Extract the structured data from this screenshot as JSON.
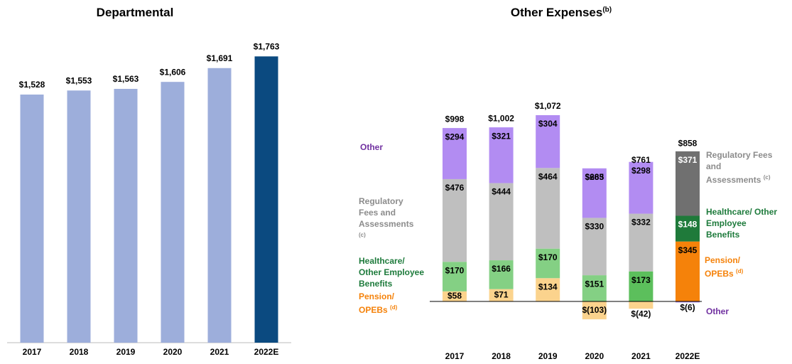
{
  "chart_data": [
    {
      "type": "bar",
      "title": "Departmental",
      "categories": [
        "2017",
        "2018",
        "2019",
        "2020",
        "2021",
        "2022E"
      ],
      "values": [
        1528,
        1553,
        1563,
        1606,
        1691,
        1763
      ],
      "value_labels": [
        "$1,528",
        "$1,553",
        "$1,563",
        "$1,606",
        "$1,691",
        "$1,763"
      ],
      "colors": [
        "#9daedb",
        "#9daedb",
        "#9daedb",
        "#9daedb",
        "#9daedb",
        "#0b4a80"
      ]
    },
    {
      "type": "stacked_bar",
      "title": "Other Expenses",
      "title_note": "(b)",
      "categories": [
        "2017",
        "2018",
        "2019",
        "2020",
        "2021",
        "2022E"
      ],
      "totals": [
        998,
        1002,
        1072,
        663,
        761,
        858
      ],
      "total_labels": [
        "$998",
        "$1,002",
        "$1,072",
        "$663",
        "$761",
        "$858"
      ],
      "series": [
        {
          "name": "Pension/ OPEBs",
          "note": "(d)",
          "legend_color": "#f5820a",
          "colors": [
            "#fbd38d",
            "#fbd38d",
            "#fbd38d",
            "#fbd38d",
            "#fbd38d",
            "#f5820a"
          ],
          "values": [
            58,
            71,
            134,
            -103,
            -42,
            345
          ],
          "value_labels": [
            "$58",
            "$71",
            "$134",
            "$(103)",
            "$(42)",
            "$345"
          ]
        },
        {
          "name": "Healthcare/ Other Employee Benefits",
          "legend_color": "#1e7b3c",
          "colors": [
            "#84d084",
            "#84d084",
            "#84d084",
            "#84d084",
            "#5cbf5c",
            "#1f7a3a"
          ],
          "values": [
            170,
            166,
            170,
            151,
            173,
            148
          ],
          "value_labels": [
            "$170",
            "$166",
            "$170",
            "$151",
            "$173",
            "$148"
          ]
        },
        {
          "name": "Regulatory Fees and Assessments",
          "note": "(c)",
          "legend_color": "#8c8c8c",
          "colors": [
            "#bfbfbf",
            "#bfbfbf",
            "#bfbfbf",
            "#bfbfbf",
            "#bfbfbf",
            "#707070"
          ],
          "values": [
            476,
            444,
            464,
            330,
            332,
            371
          ],
          "value_labels": [
            "$476",
            "$444",
            "$464",
            "$330",
            "$332",
            "$371"
          ]
        },
        {
          "name": "Other",
          "legend_color": "#7030a0",
          "colors": [
            "#b28cf2",
            "#b28cf2",
            "#b28cf2",
            "#b28cf2",
            "#b28cf2",
            "#b28cf2"
          ],
          "values": [
            294,
            321,
            304,
            285,
            298,
            -6
          ],
          "value_labels": [
            "$294",
            "$321",
            "$304",
            "$285",
            "$298",
            "$(6)"
          ]
        }
      ]
    }
  ]
}
